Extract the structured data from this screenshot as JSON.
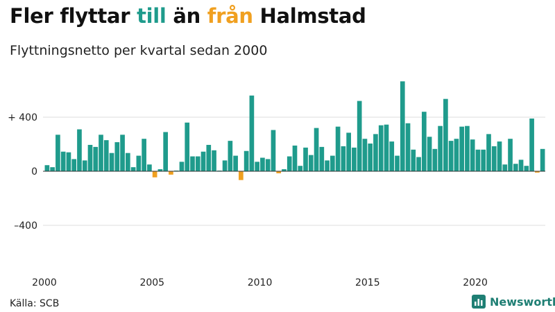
{
  "header": {
    "title_part1": "Fler flyttar ",
    "title_in": "till",
    "title_part2": " än ",
    "title_out": "från",
    "title_part3": " Halmstad",
    "subtitle": "Flyttningsnetto per kvartal sedan 2000"
  },
  "footer": {
    "source": "Källa: SCB",
    "brand": "Newsworthy",
    "brand_icon": "bar-chart-logo-icon"
  },
  "colors": {
    "positive": "#1f9b8c",
    "negative": "#f0a020",
    "grid": "#dddddd",
    "baseline": "#333333",
    "brand": "#1f7f74"
  },
  "chart_data": {
    "type": "bar",
    "title": "Fler flyttar till än från Halmstad",
    "subtitle": "Flyttningsnetto per kvartal sedan 2000",
    "x_start": 2000,
    "periods_per_year": 4,
    "x_ticks": [
      2000,
      2005,
      2010,
      2015,
      2020
    ],
    "x_tick_labels": [
      "2000",
      "2005",
      "2010",
      "2015",
      "2020"
    ],
    "y_ticks": [
      400,
      0,
      -400
    ],
    "y_tick_labels": [
      "+ 400",
      "0",
      "–400"
    ],
    "ylim": [
      -700,
      680
    ],
    "grid": true,
    "values": [
      45,
      30,
      270,
      145,
      140,
      90,
      310,
      80,
      195,
      180,
      270,
      230,
      135,
      215,
      270,
      135,
      30,
      115,
      240,
      50,
      -45,
      15,
      290,
      -25,
      5,
      70,
      360,
      110,
      110,
      145,
      195,
      155,
      5,
      80,
      225,
      115,
      -65,
      150,
      560,
      70,
      100,
      90,
      305,
      -15,
      15,
      110,
      190,
      40,
      175,
      120,
      320,
      180,
      80,
      115,
      330,
      185,
      285,
      175,
      520,
      240,
      205,
      275,
      340,
      345,
      220,
      115,
      665,
      355,
      160,
      105,
      440,
      255,
      165,
      335,
      535,
      225,
      240,
      330,
      335,
      235,
      160,
      160,
      275,
      185,
      220,
      50,
      240,
      55,
      85,
      40,
      390,
      -10,
      165
    ]
  }
}
